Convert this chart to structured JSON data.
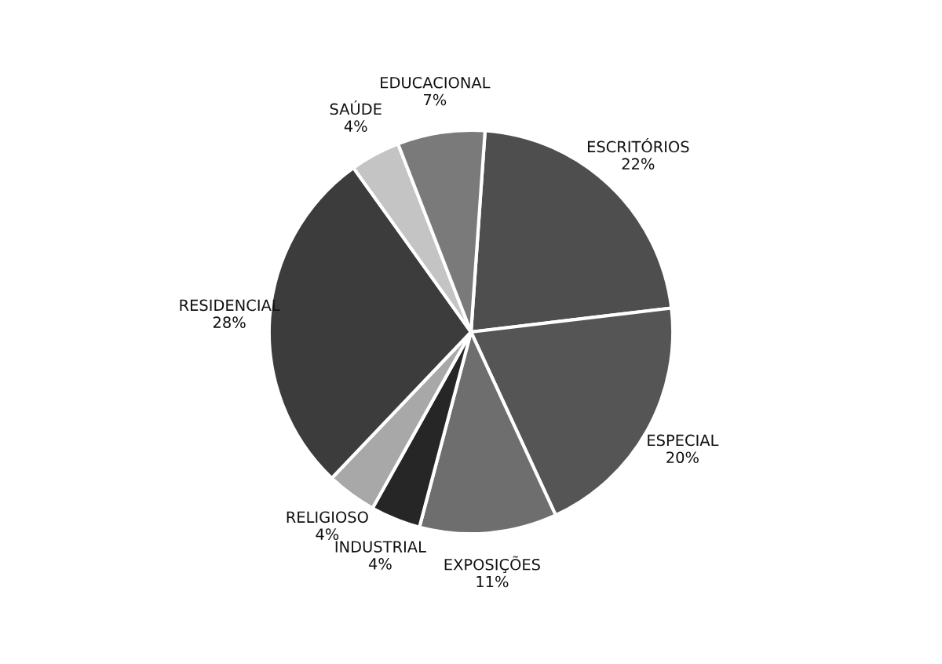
{
  "chart_data": {
    "type": "pie",
    "categories": [
      "ESCRITÓRIOS",
      "ESPECIAL",
      "EXPOSIÇÕES",
      "INDUSTRIAL",
      "RELIGIOSO",
      "RESIDENCIAL",
      "SAÚDE",
      "EDUCACIONAL"
    ],
    "values": [
      22,
      20,
      11,
      4,
      4,
      28,
      4,
      7
    ],
    "value_labels": [
      "22%",
      "20%",
      "11%",
      "4%",
      "4%",
      "28%",
      "4%",
      "7%"
    ],
    "colors": [
      "#4e4e4e",
      "#555555",
      "#6e6e6e",
      "#262626",
      "#a8a8a8",
      "#3c3c3c",
      "#c4c4c4",
      "#7a7a7a"
    ]
  }
}
